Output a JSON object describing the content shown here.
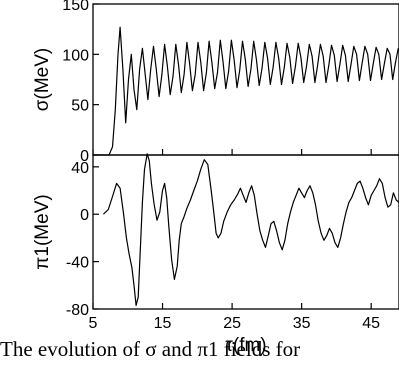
{
  "chart_data": [
    {
      "type": "line",
      "ylabel": "σ(MeV)",
      "xlim": [
        5,
        49
      ],
      "ylim": [
        0,
        150
      ],
      "yticks": [
        "0",
        "50",
        "100",
        "150"
      ],
      "grid": false,
      "series": [
        {
          "x": [
            5,
            6.5,
            7.3,
            7.8,
            8.2,
            8.6,
            8.9,
            9.3,
            9.7,
            10.1,
            10.5,
            10.9,
            11.3,
            11.7,
            12.1,
            12.5,
            12.9,
            13.3,
            13.7,
            14.1,
            14.5,
            14.9,
            15.3,
            15.7,
            16.1,
            16.5,
            16.9,
            17.3,
            17.7,
            18.1,
            18.5,
            18.9,
            19.3,
            19.7,
            20.1,
            20.5,
            20.9,
            21.3,
            21.7,
            22.1,
            22.5,
            22.9,
            23.3,
            23.7,
            24.1,
            24.5,
            24.9,
            25.3,
            25.7,
            26.1,
            26.5,
            26.9,
            27.3,
            27.7,
            28.1,
            28.5,
            28.9,
            29.3,
            29.7,
            30.1,
            30.5,
            30.9,
            31.3,
            31.7,
            32.1,
            32.5,
            32.9,
            33.3,
            33.7,
            34.1,
            34.5,
            34.9,
            35.3,
            35.7,
            36.1,
            36.5,
            36.9,
            37.3,
            37.7,
            38.1,
            38.5,
            38.9,
            39.3,
            39.7,
            40.1,
            40.5,
            40.9,
            41.3,
            41.7,
            42.1,
            42.5,
            42.9,
            43.3,
            43.7,
            44.1,
            44.5,
            44.9,
            45.3,
            45.7,
            46.1,
            46.5,
            46.9,
            47.3,
            47.7,
            48.1,
            48.5,
            48.9
          ],
          "y": [
            0,
            0,
            0,
            8,
            45,
            100,
            127,
            85,
            32,
            75,
            100,
            65,
            45,
            85,
            106,
            80,
            55,
            85,
            108,
            85,
            58,
            80,
            110,
            88,
            60,
            78,
            110,
            90,
            62,
            80,
            112,
            90,
            64,
            80,
            112,
            92,
            64,
            82,
            113,
            92,
            66,
            82,
            114,
            93,
            66,
            83,
            114,
            94,
            67,
            84,
            113,
            95,
            68,
            85,
            113,
            95,
            69,
            86,
            112,
            96,
            70,
            87,
            112,
            96,
            70,
            87,
            111,
            97,
            71,
            88,
            111,
            97,
            72,
            88,
            110,
            98,
            72,
            89,
            110,
            98,
            72,
            89,
            109,
            99,
            73,
            90,
            109,
            99,
            73,
            90,
            108,
            100,
            74,
            91,
            108,
            100,
            74,
            91,
            107,
            100,
            75,
            91,
            106,
            100,
            75,
            92,
            106
          ]
        }
      ]
    },
    {
      "type": "line",
      "xlabel": "τ(fm)",
      "ylabel": "π1(MeV)",
      "xlim": [
        5,
        49
      ],
      "ylim": [
        -80,
        50
      ],
      "xticks": [
        "5",
        "15",
        "25",
        "35",
        "45"
      ],
      "yticks": [
        "-80",
        "-40",
        "0",
        "40"
      ],
      "grid": false,
      "series": [
        {
          "x": [
            6.5,
            7.2,
            7.8,
            8.4,
            8.9,
            9.4,
            9.8,
            10.2,
            10.6,
            10.9,
            11.2,
            11.5,
            11.8,
            12.1,
            12.4,
            12.8,
            13.1,
            13.4,
            13.8,
            14.2,
            14.6,
            15.0,
            15.3,
            15.6,
            15.9,
            16.3,
            16.7,
            17.1,
            17.4,
            17.7,
            18.1,
            18.5,
            19.0,
            19.5,
            20.0,
            20.5,
            21.0,
            21.5,
            22.0,
            22.4,
            22.7,
            23.0,
            23.4,
            23.8,
            24.3,
            24.8,
            25.3,
            25.8,
            26.2,
            26.6,
            27.0,
            27.4,
            27.8,
            28.2,
            28.6,
            29.0,
            29.4,
            29.8,
            30.2,
            30.6,
            31.0,
            31.4,
            31.8,
            32.2,
            32.6,
            33.0,
            33.4,
            33.8,
            34.2,
            34.6,
            35.0,
            35.4,
            35.8,
            36.2,
            36.6,
            37.0,
            37.4,
            37.8,
            38.2,
            38.6,
            39.0,
            39.4,
            39.8,
            40.2,
            40.6,
            41.0,
            41.4,
            41.8,
            42.2,
            42.6,
            43.0,
            43.4,
            43.8,
            44.2,
            44.6,
            45.0,
            45.4,
            45.8,
            46.2,
            46.6,
            47.0,
            47.4,
            47.8,
            48.2,
            48.6,
            49.0
          ],
          "y": [
            0,
            4,
            15,
            26,
            22,
            0,
            -20,
            -34,
            -45,
            -60,
            -77,
            -70,
            -30,
            10,
            38,
            51,
            45,
            26,
            8,
            -5,
            2,
            20,
            26,
            14,
            -10,
            -38,
            -55,
            -44,
            -22,
            -8,
            -2,
            5,
            12,
            20,
            28,
            38,
            46,
            42,
            20,
            0,
            -16,
            -20,
            -16,
            -6,
            2,
            8,
            12,
            17,
            22,
            16,
            10,
            18,
            24,
            16,
            0,
            -14,
            -22,
            -28,
            -18,
            -8,
            -6,
            -14,
            -24,
            -30,
            -22,
            -8,
            2,
            10,
            16,
            22,
            18,
            14,
            20,
            24,
            18,
            8,
            -6,
            -16,
            -22,
            -18,
            -12,
            -16,
            -24,
            -28,
            -20,
            -8,
            2,
            10,
            14,
            20,
            26,
            28,
            22,
            14,
            8,
            16,
            20,
            24,
            30,
            26,
            14,
            6,
            8,
            18,
            12,
            10
          ]
        }
      ]
    }
  ],
  "caption": "The evolution of σ and π1 fields for"
}
